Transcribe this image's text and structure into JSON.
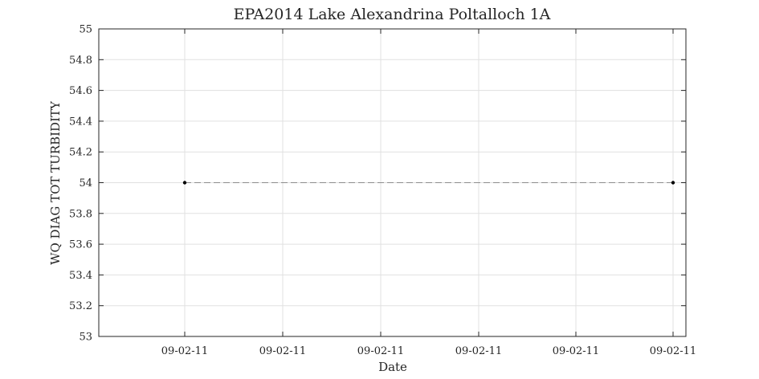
{
  "chart_data": {
    "type": "scatter",
    "title": "EPA2014 Lake Alexandrina Poltalloch 1A",
    "xlabel": "Date",
    "ylabel": "WQ DIAG TOT TURBIDITY",
    "ylim": [
      53,
      55
    ],
    "y_ticks": [
      "53",
      "53.2",
      "53.4",
      "53.6",
      "53.8",
      "54",
      "54.2",
      "54.4",
      "54.6",
      "54.8",
      "55"
    ],
    "x_ticks": [
      "09-02-11",
      "09-02-11",
      "09-02-11",
      "09-02-11",
      "09-02-11",
      "09-02-11"
    ],
    "grid": true,
    "series": [
      {
        "line_style": "dashed",
        "points": [
          {
            "x": "09-02-11",
            "y": 54
          },
          {
            "x": "09-02-11",
            "y": 54
          }
        ]
      }
    ],
    "colors": {
      "marker": "#000000",
      "line": "#8c8c8c",
      "grid": "#e0e0e0",
      "axis": "#262626"
    }
  }
}
